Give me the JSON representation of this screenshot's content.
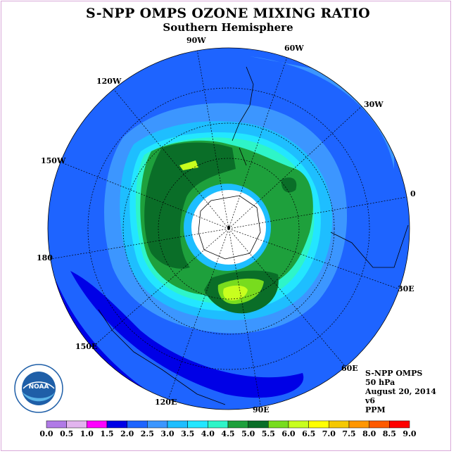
{
  "title": "S-NPP OMPS OZONE MIXING RATIO",
  "subtitle": "Southern Hemisphere",
  "longitude_labels": [
    {
      "id": "90w",
      "text": "90W"
    },
    {
      "id": "60w",
      "text": "60W"
    },
    {
      "id": "30w",
      "text": "30W"
    },
    {
      "id": "0",
      "text": "0"
    },
    {
      "id": "30e",
      "text": "30E"
    },
    {
      "id": "60e",
      "text": "60E"
    },
    {
      "id": "90e",
      "text": "90E"
    },
    {
      "id": "120e",
      "text": "120E"
    },
    {
      "id": "150e",
      "text": "150E"
    },
    {
      "id": "180",
      "text": "180"
    },
    {
      "id": "150w",
      "text": "150W"
    },
    {
      "id": "120w",
      "text": "120W"
    }
  ],
  "info": {
    "instrument": "S-NPP OMPS",
    "level": "50 hPa",
    "date": "August 20, 2014",
    "version": "v6",
    "units": "PPM"
  },
  "logo": {
    "text": "NOAA"
  },
  "colorbar": {
    "ticks": [
      "0.0",
      "0.5",
      "1.0",
      "1.5",
      "2.0",
      "2.5",
      "3.0",
      "3.5",
      "4.0",
      "4.5",
      "5.0",
      "5.5",
      "6.0",
      "6.5",
      "7.0",
      "7.5",
      "8.0",
      "8.5",
      "9.0"
    ],
    "colors": [
      "#b07ae6",
      "#e2b4ee",
      "#ff00ff",
      "#0000e6",
      "#1e64ff",
      "#3c96ff",
      "#1ebeff",
      "#23e6ff",
      "#2ef5c8",
      "#1ea03c",
      "#0a6e28",
      "#78dc1e",
      "#c8ff1e",
      "#ffff00",
      "#f5c800",
      "#ff9600",
      "#ff5a00",
      "#ff0000",
      "#8c5a3c"
    ]
  },
  "map_colors": {
    "background_ocean": "#1e64ff",
    "low": "#0000e6",
    "hole": "#ffffff",
    "ring_cyan": "#1ebeff",
    "ring_aqua": "#23e6ff",
    "ring_teal": "#2ef5c8",
    "green": "#1ea03c",
    "dark_green": "#0a6e28",
    "lime": "#c8ff1e"
  }
}
